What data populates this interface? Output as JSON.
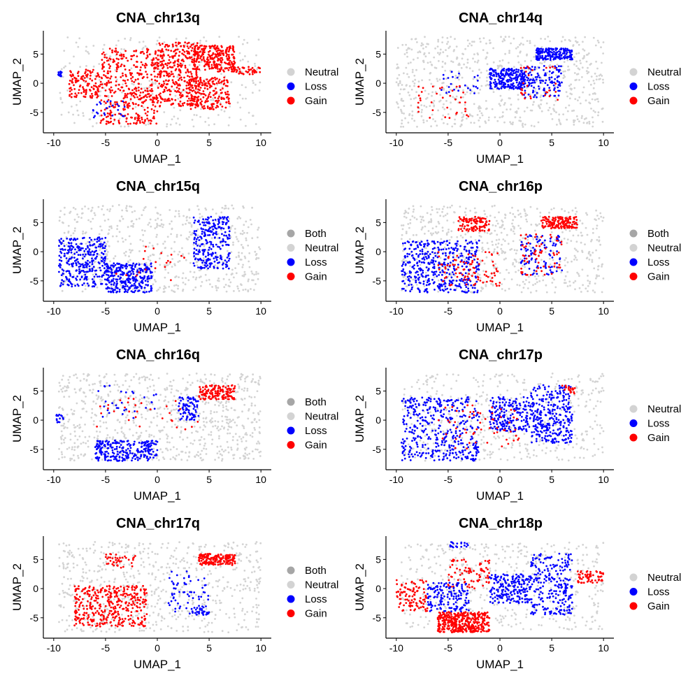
{
  "colors": {
    "Both": "#A6A6A6",
    "Neutral": "#D3D3D3",
    "Loss": "#0000FF",
    "Gain": "#FF0000"
  },
  "chart_data": [
    {
      "type": "scatter",
      "title": "CNA_chr13q",
      "xlabel": "UMAP_1",
      "ylabel": "UMAP_2",
      "xlim": [
        -11,
        11
      ],
      "ylim": [
        -8.5,
        9
      ],
      "xticks": [
        -10,
        -5,
        0,
        5,
        10
      ],
      "yticks": [
        -5,
        0,
        5
      ],
      "legend": [
        "Neutral",
        "Loss",
        "Gain"
      ],
      "legend_position": "right",
      "regions": [
        {
          "cat": "Loss",
          "x": [
            -9.6,
            -9.2
          ],
          "y": [
            1.0,
            2.0
          ],
          "n": 15
        },
        {
          "cat": "Neutral",
          "x": [
            -9.5,
            10
          ],
          "y": [
            -7.5,
            8
          ],
          "n": 300
        },
        {
          "cat": "Gain",
          "x": [
            -8.5,
            -5.5
          ],
          "y": [
            -2.5,
            2.5
          ],
          "n": 120
        },
        {
          "cat": "Gain",
          "x": [
            -5.5,
            0
          ],
          "y": [
            -7,
            6
          ],
          "n": 400
        },
        {
          "cat": "Gain",
          "x": [
            0,
            4
          ],
          "y": [
            -4,
            7
          ],
          "n": 350
        },
        {
          "cat": "Gain",
          "x": [
            3.5,
            7.5
          ],
          "y": [
            2,
            6.5
          ],
          "n": 250
        },
        {
          "cat": "Gain",
          "x": [
            3,
            7
          ],
          "y": [
            -4.5,
            1
          ],
          "n": 200
        },
        {
          "cat": "Gain",
          "x": [
            7.5,
            10
          ],
          "y": [
            1.5,
            2.8
          ],
          "n": 40
        },
        {
          "cat": "Loss",
          "x": [
            -6.5,
            -3
          ],
          "y": [
            -6,
            -3
          ],
          "n": 25
        }
      ]
    },
    {
      "type": "scatter",
      "title": "CNA_chr14q",
      "xlabel": "UMAP_1",
      "ylabel": "UMAP_2",
      "xlim": [
        -11,
        11
      ],
      "ylim": [
        -8.5,
        9
      ],
      "xticks": [
        -10,
        -5,
        0,
        5,
        10
      ],
      "yticks": [
        -5,
        0,
        5
      ],
      "legend": [
        "Neutral",
        "Loss",
        "Gain"
      ],
      "legend_position": "right",
      "regions": [
        {
          "cat": "Neutral",
          "x": [
            -10,
            10
          ],
          "y": [
            -7.5,
            8
          ],
          "n": 700
        },
        {
          "cat": "Loss",
          "x": [
            -1,
            2.5
          ],
          "y": [
            -1,
            2.5
          ],
          "n": 220
        },
        {
          "cat": "Loss",
          "x": [
            3.5,
            7
          ],
          "y": [
            4,
            6
          ],
          "n": 180
        },
        {
          "cat": "Loss",
          "x": [
            2,
            6
          ],
          "y": [
            -2.5,
            3
          ],
          "n": 120
        },
        {
          "cat": "Loss",
          "x": [
            -6,
            -2
          ],
          "y": [
            -2,
            2
          ],
          "n": 25
        },
        {
          "cat": "Gain",
          "x": [
            -8,
            -3
          ],
          "y": [
            -6,
            0
          ],
          "n": 35
        },
        {
          "cat": "Gain",
          "x": [
            2,
            6
          ],
          "y": [
            -3,
            3
          ],
          "n": 30
        }
      ]
    },
    {
      "type": "scatter",
      "title": "CNA_chr15q",
      "xlabel": "UMAP_1",
      "ylabel": "UMAP_2",
      "xlim": [
        -11,
        11
      ],
      "ylim": [
        -8.5,
        9
      ],
      "xticks": [
        -10,
        -5,
        0,
        5,
        10
      ],
      "yticks": [
        -5,
        0,
        5
      ],
      "legend": [
        "Both",
        "Neutral",
        "Loss",
        "Gain"
      ],
      "legend_position": "right",
      "regions": [
        {
          "cat": "Neutral",
          "x": [
            -9.5,
            10
          ],
          "y": [
            -7,
            8
          ],
          "n": 650
        },
        {
          "cat": "Loss",
          "x": [
            -9.5,
            -5
          ],
          "y": [
            -6,
            2.5
          ],
          "n": 300
        },
        {
          "cat": "Loss",
          "x": [
            -5,
            -0.5
          ],
          "y": [
            -7,
            -2
          ],
          "n": 300
        },
        {
          "cat": "Loss",
          "x": [
            3.5,
            7
          ],
          "y": [
            -3,
            6
          ],
          "n": 250
        },
        {
          "cat": "Gain",
          "x": [
            -5,
            3
          ],
          "y": [
            -5,
            1
          ],
          "n": 20
        }
      ]
    },
    {
      "type": "scatter",
      "title": "CNA_chr16p",
      "xlabel": "UMAP_1",
      "ylabel": "UMAP_2",
      "xlim": [
        -11,
        11
      ],
      "ylim": [
        -8.5,
        9
      ],
      "xticks": [
        -10,
        -5,
        0,
        5,
        10
      ],
      "yticks": [
        -5,
        0,
        5
      ],
      "legend": [
        "Both",
        "Neutral",
        "Loss",
        "Gain"
      ],
      "legend_position": "right",
      "regions": [
        {
          "cat": "Neutral",
          "x": [
            -9.5,
            10
          ],
          "y": [
            -7,
            8
          ],
          "n": 650
        },
        {
          "cat": "Loss",
          "x": [
            -9.5,
            -2
          ],
          "y": [
            -7,
            2
          ],
          "n": 420
        },
        {
          "cat": "Loss",
          "x": [
            2,
            6
          ],
          "y": [
            -4,
            3
          ],
          "n": 100
        },
        {
          "cat": "Gain",
          "x": [
            -4,
            -1
          ],
          "y": [
            3.5,
            6
          ],
          "n": 100
        },
        {
          "cat": "Gain",
          "x": [
            4,
            7.5
          ],
          "y": [
            4,
            6
          ],
          "n": 160
        },
        {
          "cat": "Gain",
          "x": [
            -6,
            0
          ],
          "y": [
            -6,
            0
          ],
          "n": 90
        },
        {
          "cat": "Gain",
          "x": [
            2,
            6
          ],
          "y": [
            -4,
            3
          ],
          "n": 60
        }
      ]
    },
    {
      "type": "scatter",
      "title": "CNA_chr16q",
      "xlabel": "UMAP_1",
      "ylabel": "UMAP_2",
      "xlim": [
        -11,
        11
      ],
      "ylim": [
        -8.5,
        9
      ],
      "xticks": [
        -10,
        -5,
        0,
        5,
        10
      ],
      "yticks": [
        -5,
        0,
        5
      ],
      "legend": [
        "Both",
        "Neutral",
        "Loss",
        "Gain"
      ],
      "legend_position": "right",
      "regions": [
        {
          "cat": "Neutral",
          "x": [
            -9.5,
            10
          ],
          "y": [
            -7,
            8
          ],
          "n": 800
        },
        {
          "cat": "Loss",
          "x": [
            -6,
            0
          ],
          "y": [
            -7,
            -3.5
          ],
          "n": 250
        },
        {
          "cat": "Loss",
          "x": [
            2,
            4
          ],
          "y": [
            0,
            4
          ],
          "n": 80
        },
        {
          "cat": "Loss",
          "x": [
            -9.8,
            -9
          ],
          "y": [
            -0.5,
            1
          ],
          "n": 15
        },
        {
          "cat": "Loss",
          "x": [
            -6,
            0
          ],
          "y": [
            0,
            7
          ],
          "n": 30
        },
        {
          "cat": "Gain",
          "x": [
            4,
            7.5
          ],
          "y": [
            3.5,
            6
          ],
          "n": 150
        },
        {
          "cat": "Gain",
          "x": [
            -6,
            4
          ],
          "y": [
            -2,
            4
          ],
          "n": 30
        }
      ]
    },
    {
      "type": "scatter",
      "title": "CNA_chr17p",
      "xlabel": "UMAP_1",
      "ylabel": "UMAP_2",
      "xlim": [
        -11,
        11
      ],
      "ylim": [
        -8.5,
        9
      ],
      "xticks": [
        -10,
        -5,
        0,
        5,
        10
      ],
      "yticks": [
        -5,
        0,
        5
      ],
      "legend": [
        "Neutral",
        "Loss",
        "Gain"
      ],
      "legend_position": "right",
      "regions": [
        {
          "cat": "Neutral",
          "x": [
            -9.5,
            10
          ],
          "y": [
            -7,
            8
          ],
          "n": 500
        },
        {
          "cat": "Loss",
          "x": [
            -9.5,
            -2
          ],
          "y": [
            -7,
            4
          ],
          "n": 400
        },
        {
          "cat": "Loss",
          "x": [
            -1,
            3
          ],
          "y": [
            -2,
            4
          ],
          "n": 200
        },
        {
          "cat": "Loss",
          "x": [
            3,
            7
          ],
          "y": [
            -4,
            6
          ],
          "n": 300
        },
        {
          "cat": "Gain",
          "x": [
            -6,
            2
          ],
          "y": [
            -5,
            3
          ],
          "n": 60
        },
        {
          "cat": "Gain",
          "x": [
            6,
            7.5
          ],
          "y": [
            4.5,
            6
          ],
          "n": 20
        }
      ]
    },
    {
      "type": "scatter",
      "title": "CNA_chr17q",
      "xlabel": "UMAP_1",
      "ylabel": "UMAP_2",
      "xlim": [
        -11,
        11
      ],
      "ylim": [
        -8.5,
        9
      ],
      "xticks": [
        -10,
        -5,
        0,
        5,
        10
      ],
      "yticks": [
        -5,
        0,
        5
      ],
      "legend": [
        "Both",
        "Neutral",
        "Loss",
        "Gain"
      ],
      "legend_position": "right",
      "regions": [
        {
          "cat": "Neutral",
          "x": [
            -9.5,
            10
          ],
          "y": [
            -7.5,
            8
          ],
          "n": 650
        },
        {
          "cat": "Gain",
          "x": [
            -8,
            -1
          ],
          "y": [
            -6.5,
            0.5
          ],
          "n": 380
        },
        {
          "cat": "Gain",
          "x": [
            4,
            7.5
          ],
          "y": [
            4,
            6
          ],
          "n": 180
        },
        {
          "cat": "Gain",
          "x": [
            -5,
            -2
          ],
          "y": [
            3.5,
            6
          ],
          "n": 40
        },
        {
          "cat": "Loss",
          "x": [
            1,
            5
          ],
          "y": [
            -4,
            3
          ],
          "n": 60
        },
        {
          "cat": "Loss",
          "x": [
            3,
            5
          ],
          "y": [
            -4.5,
            -3
          ],
          "n": 30
        }
      ]
    },
    {
      "type": "scatter",
      "title": "CNA_chr18p",
      "xlabel": "UMAP_1",
      "ylabel": "UMAP_2",
      "xlim": [
        -11,
        11
      ],
      "ylim": [
        -8.5,
        9
      ],
      "xticks": [
        -10,
        -5,
        0,
        5,
        10
      ],
      "yticks": [
        -5,
        0,
        5
      ],
      "legend": [
        "Neutral",
        "Loss",
        "Gain"
      ],
      "legend_position": "right",
      "regions": [
        {
          "cat": "Neutral",
          "x": [
            -9.5,
            10
          ],
          "y": [
            -7,
            8
          ],
          "n": 500
        },
        {
          "cat": "Gain",
          "x": [
            -6,
            -1
          ],
          "y": [
            -7.5,
            -4
          ],
          "n": 400
        },
        {
          "cat": "Gain",
          "x": [
            -10,
            -7
          ],
          "y": [
            -4,
            1.5
          ],
          "n": 100
        },
        {
          "cat": "Gain",
          "x": [
            7.5,
            10
          ],
          "y": [
            1,
            3
          ],
          "n": 60
        },
        {
          "cat": "Gain",
          "x": [
            -5,
            -1
          ],
          "y": [
            0,
            5
          ],
          "n": 80
        },
        {
          "cat": "Loss",
          "x": [
            -1,
            3
          ],
          "y": [
            -2.5,
            2.5
          ],
          "n": 200
        },
        {
          "cat": "Loss",
          "x": [
            3,
            7
          ],
          "y": [
            -4.5,
            6
          ],
          "n": 250
        },
        {
          "cat": "Loss",
          "x": [
            -7,
            -3
          ],
          "y": [
            -4,
            1
          ],
          "n": 150
        },
        {
          "cat": "Loss",
          "x": [
            -5,
            -3
          ],
          "y": [
            7,
            8
          ],
          "n": 20
        }
      ]
    }
  ]
}
